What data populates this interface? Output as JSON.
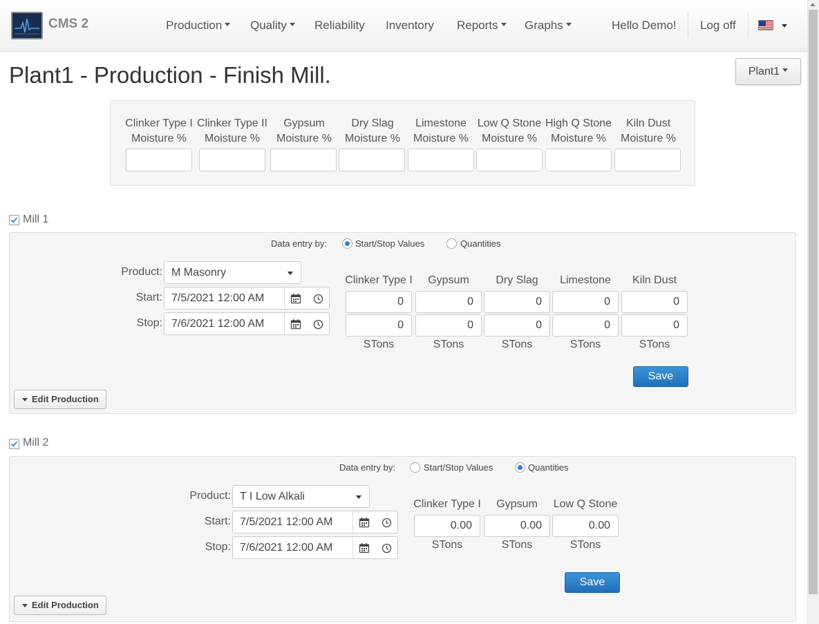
{
  "app": {
    "name": "CMS 2"
  },
  "nav": {
    "production": "Production",
    "quality": "Quality",
    "reliability": "Reliability",
    "inventory": "Inventory",
    "reports": "Reports",
    "graphs": "Graphs",
    "greeting": "Hello Demo!",
    "logoff": "Log off",
    "language_icon": "us-flag-icon"
  },
  "page": {
    "title": "Plant1 - Production - Finish Mill.",
    "plant_selector": "Plant1"
  },
  "moisture": {
    "columns": [
      {
        "line1": "Clinker Type I",
        "line2": "Moisture %",
        "value": ""
      },
      {
        "line1": "Clinker Type II",
        "line2": "Moisture %",
        "value": ""
      },
      {
        "line1": "Gypsum",
        "line2": "Moisture %",
        "value": ""
      },
      {
        "line1": "Dry Slag",
        "line2": "Moisture %",
        "value": ""
      },
      {
        "line1": "Limestone",
        "line2": "Moisture %",
        "value": ""
      },
      {
        "line1": "Low Q Stone",
        "line2": "Moisture %",
        "value": ""
      },
      {
        "line1": "High Q Stone",
        "line2": "Moisture %",
        "value": ""
      },
      {
        "line1": "Kiln Dust",
        "line2": "Moisture %",
        "value": ""
      }
    ]
  },
  "mill1": {
    "label": "Mill 1",
    "checked": true,
    "entry_by_label": "Data entry by:",
    "option_startstop": "Start/Stop Values",
    "option_quantities": "Quantities",
    "selected_option": "Start/Stop Values",
    "product_label": "Product:",
    "product_value": "M Masonry",
    "start_label": "Start:",
    "start_value": "7/5/2021 12:00 AM",
    "stop_label": "Stop:",
    "stop_value": "7/6/2021 12:00 AM",
    "columns": [
      {
        "name": "Clinker Type I",
        "start": "0",
        "stop": "0",
        "unit": "STons"
      },
      {
        "name": "Gypsum",
        "start": "0",
        "stop": "0",
        "unit": "STons"
      },
      {
        "name": "Dry Slag",
        "start": "0",
        "stop": "0",
        "unit": "STons"
      },
      {
        "name": "Limestone",
        "start": "0",
        "stop": "0",
        "unit": "STons"
      },
      {
        "name": "Kiln Dust",
        "start": "0",
        "stop": "0",
        "unit": "STons"
      }
    ],
    "save_label": "Save",
    "edit_label": "Edit Production"
  },
  "mill2": {
    "label": "Mill 2",
    "checked": true,
    "entry_by_label": "Data entry by:",
    "option_startstop": "Start/Stop Values",
    "option_quantities": "Quantities",
    "selected_option": "Quantities",
    "product_label": "Product:",
    "product_value": "T I Low Alkali",
    "start_label": "Start:",
    "start_value": "7/5/2021 12:00 AM",
    "stop_label": "Stop:",
    "stop_value": "7/6/2021 12:00 AM",
    "columns": [
      {
        "name": "Clinker Type I",
        "quantity": "0.00",
        "unit": "STons"
      },
      {
        "name": "Gypsum",
        "quantity": "0.00",
        "unit": "STons"
      },
      {
        "name": "Low Q Stone",
        "quantity": "0.00",
        "unit": "STons"
      }
    ],
    "save_label": "Save",
    "edit_label": "Edit Production"
  },
  "colors": {
    "primary": "#2a7fc8",
    "radio_selected": "#2f7fd0",
    "panel_bg": "#f5f5f5"
  }
}
